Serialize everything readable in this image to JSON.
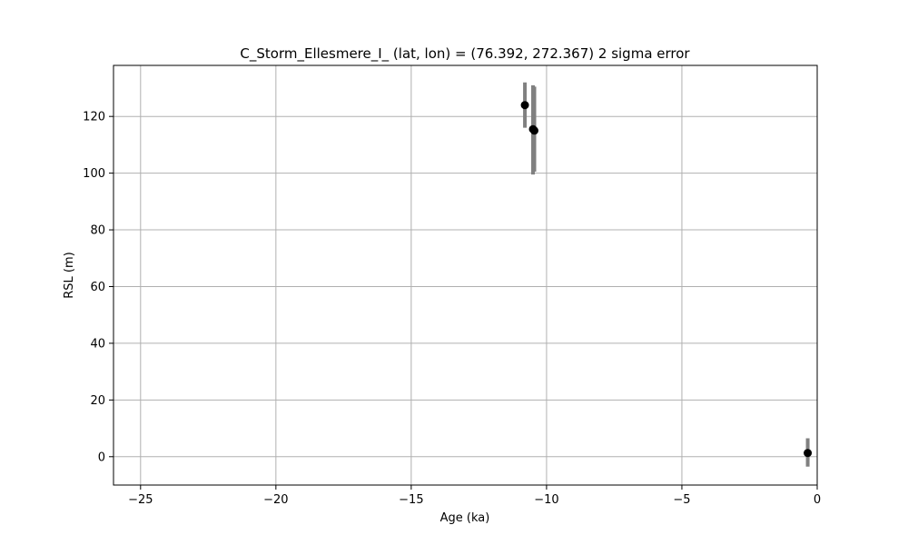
{
  "chart_data": {
    "type": "scatter",
    "title": "C_Storm_Ellesmere_I_ (lat, lon) = (76.392, 272.367)  2 sigma error",
    "xlabel": "Age (ka)",
    "ylabel": "RSL (m)",
    "xlim": [
      -26,
      0
    ],
    "ylim": [
      -10,
      138
    ],
    "xticks": [
      -25,
      -20,
      -15,
      -10,
      -5,
      0
    ],
    "xtick_labels": [
      "−25",
      "−20",
      "−15",
      "−10",
      "−5",
      "0"
    ],
    "yticks": [
      0,
      20,
      40,
      60,
      80,
      100,
      120
    ],
    "ytick_labels": [
      "0",
      "20",
      "40",
      "60",
      "80",
      "100",
      "120"
    ],
    "grid": true,
    "point_color": "#000000",
    "errorbar_color": "#808080",
    "points": [
      {
        "x": -10.8,
        "y": 124.0,
        "ylow": 116.0,
        "yhigh": 132.0
      },
      {
        "x": -10.5,
        "y": 115.5,
        "ylow": 99.5,
        "yhigh": 131.0
      },
      {
        "x": -10.45,
        "y": 115.0,
        "ylow": 100.5,
        "yhigh": 130.5
      },
      {
        "x": -0.35,
        "y": 1.3,
        "ylow": -3.5,
        "yhigh": 6.5
      }
    ]
  }
}
